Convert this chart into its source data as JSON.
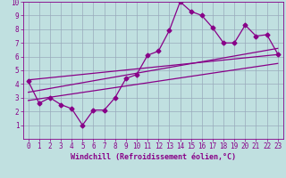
{
  "xlabel": "Windchill (Refroidissement éolien,°C)",
  "ylabel": "",
  "background_color": "#c0e0e0",
  "grid_color": "#99aabb",
  "line_color": "#880088",
  "xlim": [
    -0.5,
    23.5
  ],
  "ylim": [
    0,
    10
  ],
  "xticks": [
    0,
    1,
    2,
    3,
    4,
    5,
    6,
    7,
    8,
    9,
    10,
    11,
    12,
    13,
    14,
    15,
    16,
    17,
    18,
    19,
    20,
    21,
    22,
    23
  ],
  "yticks": [
    1,
    2,
    3,
    4,
    5,
    6,
    7,
    8,
    9,
    10
  ],
  "line1_x": [
    0,
    1,
    2,
    3,
    4,
    5,
    6,
    7,
    8,
    9,
    10,
    11,
    12,
    13,
    14,
    15,
    16,
    17,
    18,
    19,
    20,
    21,
    22,
    23
  ],
  "line1_y": [
    4.2,
    2.6,
    3.0,
    2.5,
    2.2,
    1.0,
    2.1,
    2.1,
    3.0,
    4.4,
    4.7,
    6.1,
    6.4,
    7.9,
    10.0,
    9.3,
    9.0,
    8.1,
    7.0,
    7.0,
    8.3,
    7.5,
    7.6,
    6.2
  ],
  "line2_x": [
    0,
    23
  ],
  "line2_y": [
    4.3,
    6.15
  ],
  "line3_x": [
    0,
    23
  ],
  "line3_y": [
    3.4,
    6.6
  ],
  "line4_x": [
    0,
    23
  ],
  "line4_y": [
    2.8,
    5.5
  ],
  "marker": "D",
  "marker_size": 2.5,
  "linewidth": 0.9,
  "font_size": 5.5
}
